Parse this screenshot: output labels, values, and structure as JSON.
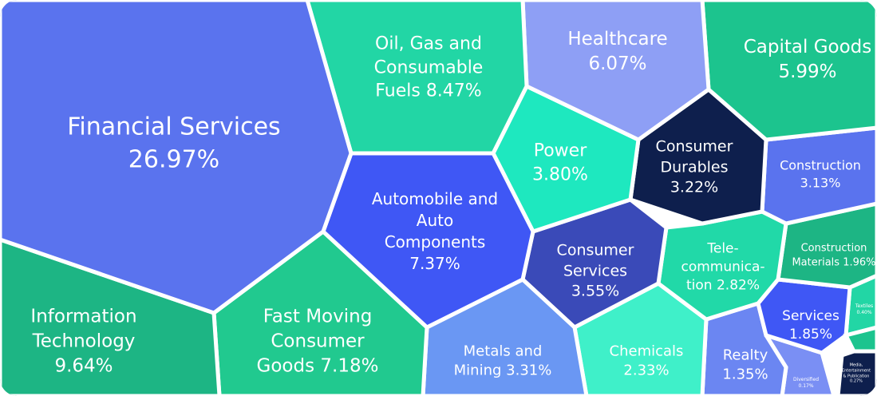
{
  "chart_data": {
    "type": "voronoi-treemap",
    "categories": [
      "Financial Services",
      "Information Technology",
      "Oil, Gas and Consumable Fuels",
      "Automobile and Auto Components",
      "Fast Moving Consumer Goods",
      "Healthcare",
      "Capital Goods",
      "Power",
      "Metals and Mining",
      "Consumer Services",
      "Consumer Durables",
      "Construction",
      "Tele-communica-tion",
      "Chemicals",
      "Construction Materials",
      "Services",
      "Realty",
      "Textiles",
      "Media, Entertainment & Publication",
      "Diversified"
    ],
    "values": [
      26.97,
      9.64,
      8.47,
      7.37,
      7.18,
      6.07,
      5.99,
      3.8,
      3.31,
      3.55,
      3.22,
      3.13,
      2.82,
      2.33,
      1.96,
      1.85,
      1.35,
      0.4,
      0.27,
      0.17
    ],
    "value_labels": [
      "26.97%",
      "9.64%",
      "8.47%",
      "7.37%",
      "7.18%",
      "6.07%",
      "5.99%",
      "3.80%",
      "3.31%",
      "3.55%",
      "3.22%",
      "3.13%",
      "2.82%",
      "2.33%",
      "1.96%",
      "1.85%",
      "1.35%",
      "0.40%",
      "0.27%",
      "0.17%"
    ],
    "colors": [
      "#5a73ee",
      "#1db584",
      "#22d6a5",
      "#3f57f5",
      "#21c98f",
      "#8e9ff5",
      "#1cc48e",
      "#1ee8bf",
      "#6a97f3",
      "#3a4ab8",
      "#0e1f4d",
      "#5a73ee",
      "#21d9a8",
      "#3ff0c9",
      "#1db584",
      "#3f57f5",
      "#6b86f2",
      "#22d6a5",
      "#0e1f4d",
      "#7a8ff4"
    ]
  }
}
